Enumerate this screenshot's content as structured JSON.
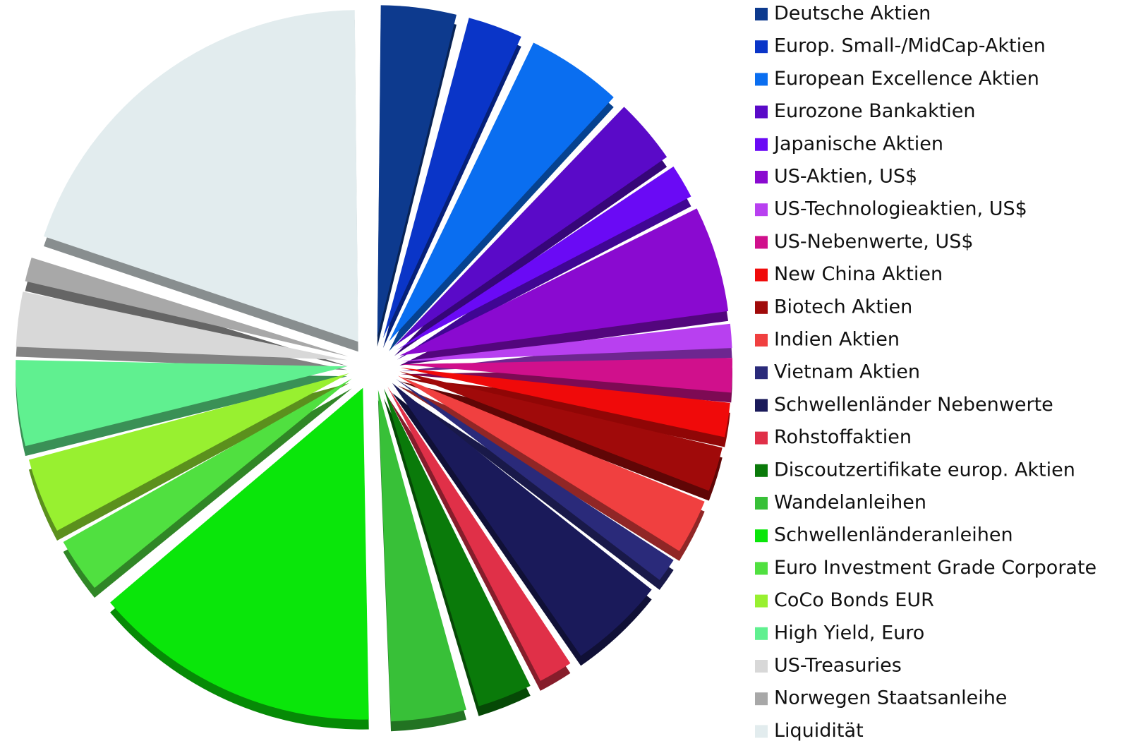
{
  "chart_data": {
    "type": "pie",
    "categories": [
      "Deutsche Aktien",
      "Europ. Small-/MidCap-Aktien",
      "European Excellence Aktien",
      "Eurozone Bankaktien",
      "Japanische Aktien",
      "US-Aktien, US$",
      "US-Technologieaktien, US$",
      "US-Nebenwerte, US$",
      "New China Aktien",
      "Biotech Aktien",
      "Indien Aktien",
      "Vietnam Aktien",
      "Schwellenländer Nebenwerte",
      "Rohstoffaktien",
      "Discoutzertifikate europ. Aktien",
      "Wandelanleihen",
      "Schwellenländeranleihen",
      "Euro Investment Grade Corporate",
      "CoCo Bonds EUR",
      "High Yield, Euro",
      "US-Treasuries",
      "Norwegen Staatsanleihe",
      "Liquidität"
    ],
    "values": [
      4,
      3,
      5,
      3.5,
      2,
      5.5,
      1.5,
      2,
      2,
      2.5,
      3,
      1.5,
      5,
      2,
      3,
      4,
      14.4,
      3,
      4,
      4.5,
      3,
      1.5,
      20
    ],
    "colors": [
      "#0d3a8e",
      "#0a35c8",
      "#0a6ef0",
      "#5a0ac8",
      "#6a0af5",
      "#8a0ad0",
      "#b840f0",
      "#d0108c",
      "#f00a0a",
      "#a00a0a",
      "#f04040",
      "#2a2a7a",
      "#1a1a5a",
      "#e03048",
      "#0a7a0a",
      "#38c038",
      "#0ae60a",
      "#50e040",
      "#98f030",
      "#60f090",
      "#d8d8d8",
      "#a8a8a8",
      "#e2ecee"
    ],
    "legend": "right"
  }
}
